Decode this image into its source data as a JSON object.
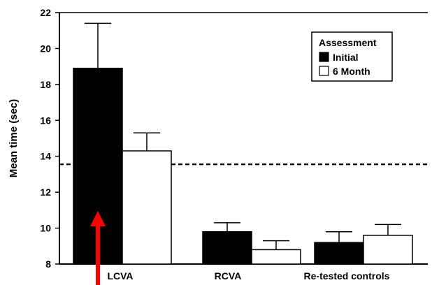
{
  "chart_data": {
    "type": "bar",
    "ylabel": "Mean time (sec)",
    "ylim": [
      8,
      22
    ],
    "yticks": [
      8,
      10,
      12,
      14,
      16,
      18,
      20,
      22
    ],
    "categories": [
      "LCVA",
      "RCVA",
      "Re-tested controls"
    ],
    "series": [
      {
        "name": "Initial",
        "color": "#000000",
        "values": [
          18.9,
          9.8,
          9.2
        ],
        "errors": [
          2.5,
          0.5,
          0.6
        ]
      },
      {
        "name": "6 Month",
        "color": "#ffffff",
        "values": [
          14.3,
          8.8,
          9.6
        ],
        "errors": [
          1.0,
          0.5,
          0.6
        ]
      }
    ],
    "legend": {
      "title": "Assessment",
      "placement": "top-right"
    },
    "reference_line": {
      "value": 13.55,
      "style": "dashed"
    },
    "annotation": {
      "type": "arrow",
      "color": "#ff0000",
      "category": "LCVA",
      "direction": "up"
    },
    "grid": false
  }
}
